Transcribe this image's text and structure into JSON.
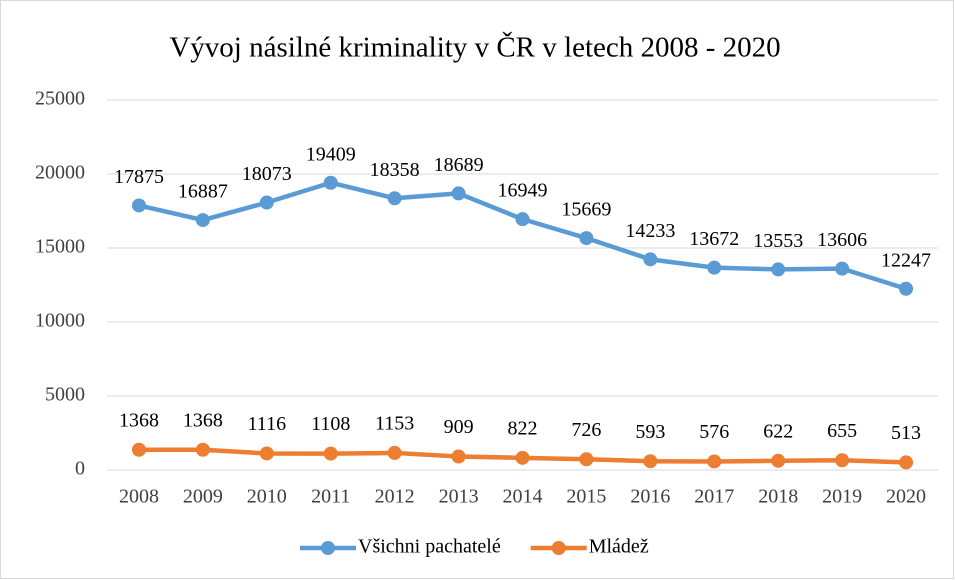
{
  "chart_data": {
    "type": "line",
    "title": "Vývoj násilné kriminality v ČR v letech 2008 - 2020",
    "categories": [
      "2008",
      "2009",
      "2010",
      "2011",
      "2012",
      "2013",
      "2014",
      "2015",
      "2016",
      "2017",
      "2018",
      "2019",
      "2020"
    ],
    "series": [
      {
        "name": "Všichni pachatelé",
        "color": "#5b9bd5",
        "values": [
          17875,
          16887,
          18073,
          19409,
          18358,
          18689,
          16949,
          15669,
          14233,
          13672,
          13553,
          13606,
          12247
        ]
      },
      {
        "name": "Mládež",
        "color": "#ed7d31",
        "values": [
          1368,
          1368,
          1116,
          1108,
          1153,
          909,
          822,
          726,
          593,
          576,
          622,
          655,
          513
        ]
      }
    ],
    "ylim": [
      0,
      25000
    ],
    "yticks": [
      0,
      5000,
      10000,
      15000,
      20000,
      25000
    ],
    "grid": true,
    "legend": "bottom"
  }
}
